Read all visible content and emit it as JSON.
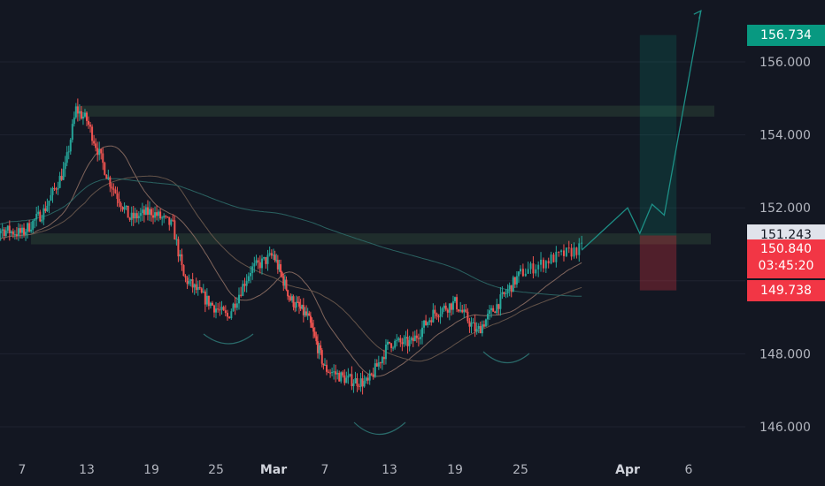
{
  "theme": {
    "background": "#131722",
    "grid": "#1f2330",
    "axis_text": "#b2b5be",
    "up_color": "#26a69a",
    "down_color": "#ef5350",
    "target_color": "#089981",
    "stop_color": "#f23645",
    "zone_color": "#2e4a3a"
  },
  "axis": {
    "y_ticks": [
      "156.000",
      "154.000",
      "152.000",
      "148.000",
      "146.000"
    ],
    "x_ticks": [
      "7",
      "13",
      "19",
      "25",
      "Mar",
      "7",
      "13",
      "19",
      "25",
      "Apr",
      "6"
    ]
  },
  "price_tags": {
    "target": "156.734",
    "entry": "151.243",
    "current_price": "150.840",
    "countdown": "03:45:20",
    "stop": "149.738"
  },
  "chart_data": {
    "type": "candlestick",
    "ylim": [
      145.5,
      157.5
    ],
    "x_range": [
      "Feb 3",
      "Apr 8"
    ],
    "x_tick_dates": [
      "Feb 7",
      "Feb 13",
      "Feb 19",
      "Feb 25",
      "Mar 1",
      "Mar 7",
      "Mar 13",
      "Mar 19",
      "Mar 25",
      "Apr 1",
      "Apr 6"
    ],
    "price_path": [
      {
        "date": "Feb 3",
        "close": 150.9
      },
      {
        "date": "Feb 5",
        "close": 151.4
      },
      {
        "date": "Feb 7",
        "close": 151.3
      },
      {
        "date": "Feb 9",
        "close": 151.9
      },
      {
        "date": "Feb 11",
        "close": 153.1
      },
      {
        "date": "Feb 12",
        "close": 154.7
      },
      {
        "date": "Feb 13",
        "close": 154.4
      },
      {
        "date": "Feb 15",
        "close": 152.8
      },
      {
        "date": "Feb 17",
        "close": 151.7
      },
      {
        "date": "Feb 19",
        "close": 151.9
      },
      {
        "date": "Feb 21",
        "close": 151.5
      },
      {
        "date": "Feb 22",
        "close": 150.1
      },
      {
        "date": "Feb 24",
        "close": 149.5
      },
      {
        "date": "Feb 26",
        "close": 149.0
      },
      {
        "date": "Feb 28",
        "close": 150.3
      },
      {
        "date": "Mar 1",
        "close": 150.7
      },
      {
        "date": "Mar 3",
        "close": 149.5
      },
      {
        "date": "Mar 5",
        "close": 149.0
      },
      {
        "date": "Mar 7",
        "close": 147.6
      },
      {
        "date": "Mar 9",
        "close": 147.3
      },
      {
        "date": "Mar 11",
        "close": 147.2
      },
      {
        "date": "Mar 13",
        "close": 148.3
      },
      {
        "date": "Mar 15",
        "close": 148.3
      },
      {
        "date": "Mar 17",
        "close": 149.1
      },
      {
        "date": "Mar 19",
        "close": 149.4
      },
      {
        "date": "Mar 21",
        "close": 148.6
      },
      {
        "date": "Mar 23",
        "close": 149.4
      },
      {
        "date": "Mar 25",
        "close": 150.2
      },
      {
        "date": "Mar 27",
        "close": 150.6
      },
      {
        "date": "Mar 29",
        "close": 150.9
      }
    ],
    "support_resistance_zones": [
      {
        "name": "resistance",
        "low": 154.5,
        "high": 154.8
      },
      {
        "name": "neckline",
        "low": 151.0,
        "high": 151.3
      }
    ],
    "moving_averages": [
      "fast",
      "mid",
      "slow"
    ],
    "projection_path": [
      {
        "date": "Mar 29",
        "price": 150.84
      },
      {
        "date": "Apr 1",
        "price": 152.0
      },
      {
        "date": "Apr 2",
        "price": 151.3
      },
      {
        "date": "Apr 3",
        "price": 152.1
      },
      {
        "date": "Apr 4",
        "price": 151.8
      },
      {
        "date": "Apr 7",
        "price": 157.4
      }
    ],
    "position": {
      "entry": 151.243,
      "target": 156.734,
      "stop": 149.738,
      "start": "Apr 2",
      "end": "Apr 5"
    },
    "pattern_arcs": [
      "left shoulder",
      "head",
      "right shoulder"
    ]
  }
}
